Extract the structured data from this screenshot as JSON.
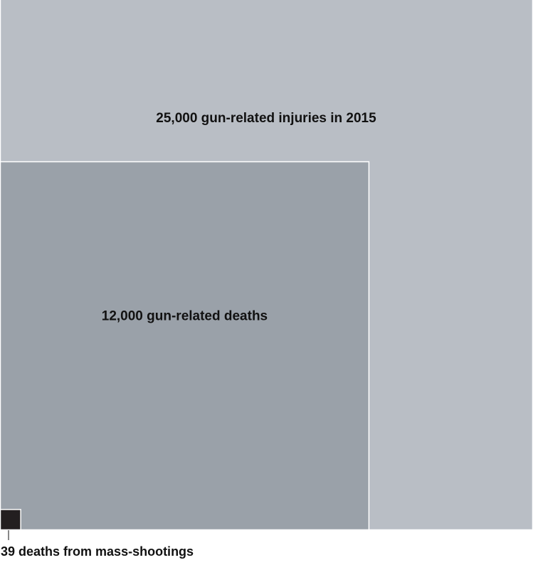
{
  "chart_data": {
    "type": "proportional-area squares",
    "title": "",
    "series": [
      {
        "label": "25,000 gun-related injuries in 2015",
        "value": 25000,
        "color": "#b9bec5"
      },
      {
        "label": "12,000 gun-related deaths",
        "value": 12000,
        "color": "#9aa1a9"
      },
      {
        "label": "39 deaths from mass-shootings",
        "value": 39,
        "color": "#231f20"
      }
    ],
    "layout_note": "nested squares anchored at bottom-left corner"
  }
}
